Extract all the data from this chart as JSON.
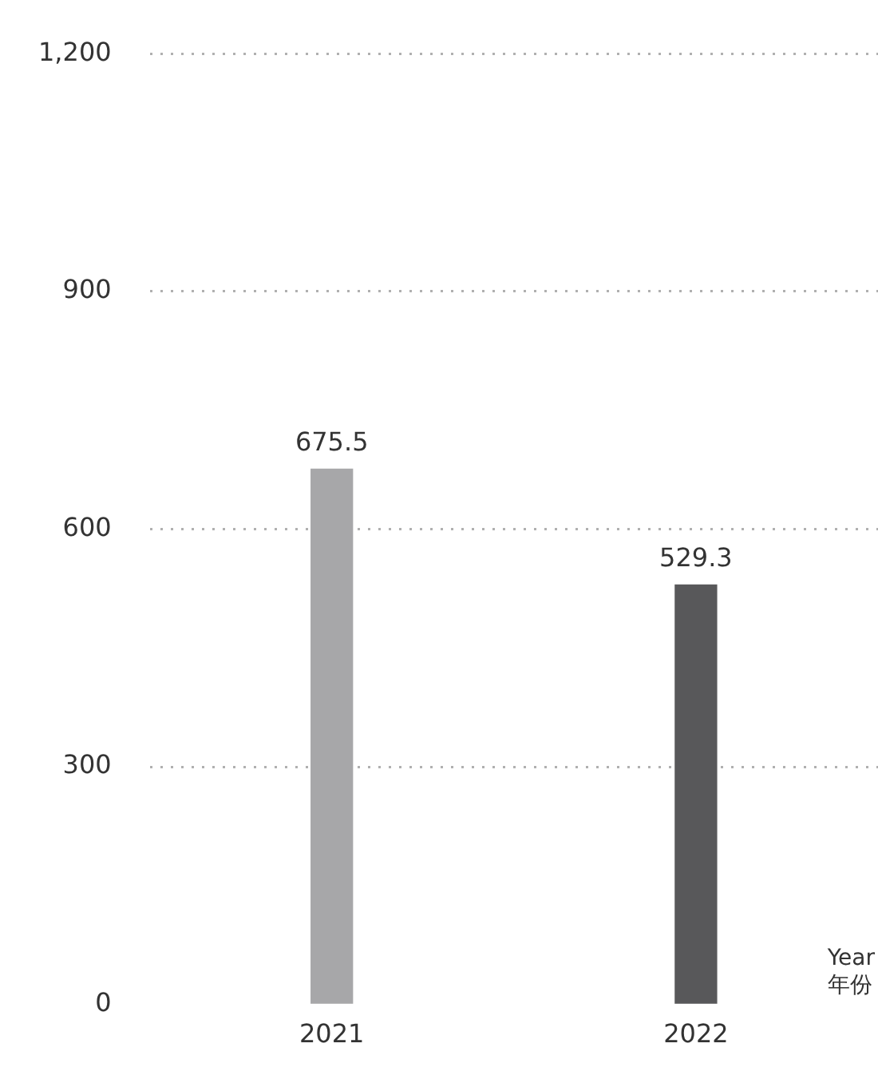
{
  "chart_data": {
    "type": "bar",
    "xlabel": "Year\n年份",
    "categories": [
      "2021",
      "2022"
    ],
    "values": [
      675.5,
      529.3
    ],
    "colors": [
      "#a7a7a9",
      "#58585a"
    ],
    "ylim": [
      0,
      1200
    ],
    "yticks": [
      0,
      300,
      600,
      900,
      {
        "value": 1200,
        "label": "1,200"
      }
    ],
    "grid": "y",
    "data_labels": true
  }
}
